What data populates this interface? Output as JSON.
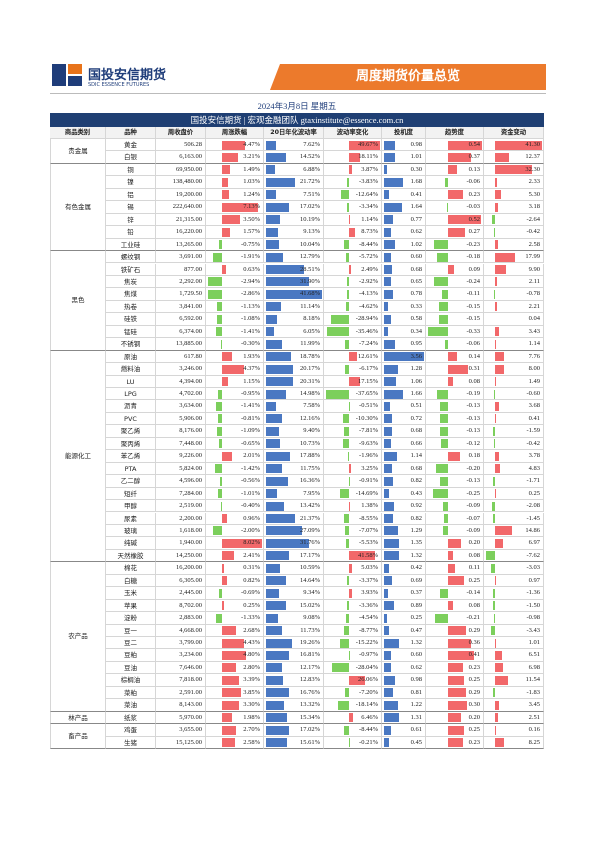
{
  "header": {
    "logo_text": "国投安信期货",
    "logo_sub": "SDIC ESSENCE FUTURES",
    "banner": "周度期货价量总览"
  },
  "date": "2024年3月8日 星期五",
  "table": {
    "title": "国投安信期货 | 宏观金融团队  gtaxinstitute@essence.com.cn",
    "columns": [
      "商品类别",
      "品种",
      "周收盘价",
      "周涨跌幅",
      "20日年化波动率",
      "波动率变化",
      "投机度",
      "趋势度",
      "资金变动"
    ],
    "groups": [
      {
        "category": "贵金属",
        "rows": [
          [
            "黄金",
            "506.28",
            "4.47%",
            "7.62%",
            "49.67%",
            "0.98",
            "0.54",
            "41.30"
          ],
          [
            "白银",
            "6,163.00",
            "3.21%",
            "14.52%",
            "18.11%",
            "1.01",
            "0.37",
            "12.37"
          ]
        ]
      },
      {
        "category": "有色金属",
        "rows": [
          [
            "铜",
            "69,950.00",
            "1.49%",
            "6.88%",
            "3.87%",
            "0.30",
            "0.13",
            "32.30"
          ],
          [
            "镍",
            "138,480.00",
            "1.03%",
            "21.72%",
            "-3.83%",
            "1.68",
            "-0.06",
            "2.33"
          ],
          [
            "铝",
            "19,200.00",
            "1.24%",
            "7.51%",
            "-12.64%",
            "0.41",
            "0.23",
            "5.30"
          ],
          [
            "锡",
            "222,640.00",
            "7.13%",
            "17.02%",
            "-3.34%",
            "1.64",
            "-0.03",
            "3.18"
          ],
          [
            "锌",
            "21,315.00",
            "3.50%",
            "10.19%",
            "1.14%",
            "0.77",
            "0.52",
            "-2.64"
          ],
          [
            "铅",
            "16,220.00",
            "1.57%",
            "9.13%",
            "8.73%",
            "0.62",
            "0.27",
            "-0.42"
          ],
          [
            "工业硅",
            "13,265.00",
            "-0.75%",
            "10.04%",
            "-8.44%",
            "1.02",
            "-0.23",
            "2.58"
          ]
        ]
      },
      {
        "category": "黑色",
        "rows": [
          [
            "螺纹钢",
            "3,691.00",
            "-1.91%",
            "12.79%",
            "-5.72%",
            "0.60",
            "-0.18",
            "17.99"
          ],
          [
            "铁矿石",
            "877.00",
            "0.63%",
            "28.51%",
            "2.49%",
            "0.68",
            "0.09",
            "9.90"
          ],
          [
            "焦炭",
            "2,292.00",
            "-2.94%",
            "31.90%",
            "-2.92%",
            "0.65",
            "-0.24",
            "2.11"
          ],
          [
            "焦煤",
            "1,729.50",
            "-2.86%",
            "41.68%",
            "-4.13%",
            "0.78",
            "-0.11",
            "-0.78"
          ],
          [
            "热卷",
            "3,841.00",
            "-1.13%",
            "11.14%",
            "-4.62%",
            "0.33",
            "-0.15",
            "2.21"
          ],
          [
            "硅铁",
            "6,592.00",
            "-1.08%",
            "8.18%",
            "-28.94%",
            "0.58",
            "-0.15",
            "0.04"
          ],
          [
            "锰硅",
            "6,374.00",
            "-1.41%",
            "6.05%",
            "-35.46%",
            "0.34",
            "-0.33",
            "3.43"
          ],
          [
            "不锈钢",
            "13,885.00",
            "-0.30%",
            "11.99%",
            "-7.24%",
            "0.95",
            "-0.06",
            "1.14"
          ]
        ]
      },
      {
        "category": "能源化工",
        "rows": [
          [
            "原油",
            "617.80",
            "1.93%",
            "18.78%",
            "12.61%",
            "3.56",
            "0.14",
            "7.76"
          ],
          [
            "燃料油",
            "3,246.00",
            "4.37%",
            "20.17%",
            "-6.17%",
            "1.28",
            "0.31",
            "8.00"
          ],
          [
            "LU",
            "4,394.00",
            "1.15%",
            "20.31%",
            "17.15%",
            "1.06",
            "0.08",
            "1.49"
          ],
          [
            "LPG",
            "4,702.00",
            "-0.95%",
            "14.98%",
            "-37.65%",
            "1.66",
            "-0.19",
            "-0.60"
          ],
          [
            "沥青",
            "3,634.00",
            "-1.41%",
            "7.58%",
            "-0.51%",
            "0.51",
            "-0.13",
            "3.68"
          ],
          [
            "PVC",
            "5,906.00",
            "-0.81%",
            "12.16%",
            "-10.30%",
            "0.72",
            "-0.13",
            "0.41"
          ],
          [
            "聚乙烯",
            "8,176.00",
            "-1.09%",
            "9.40%",
            "-7.81%",
            "0.68",
            "-0.13",
            "-1.59"
          ],
          [
            "聚丙烯",
            "7,448.00",
            "-0.65%",
            "10.73%",
            "-9.63%",
            "0.66",
            "-0.12",
            "-0.42"
          ],
          [
            "苯乙烯",
            "9,226.00",
            "2.01%",
            "17.88%",
            "-1.96%",
            "1.14",
            "0.18",
            "3.78"
          ],
          [
            "PTA",
            "5,824.00",
            "-1.42%",
            "11.75%",
            "3.25%",
            "0.68",
            "-0.20",
            "4.83"
          ],
          [
            "乙二醇",
            "4,596.00",
            "-0.56%",
            "16.36%",
            "-0.91%",
            "0.82",
            "-0.13",
            "-1.71"
          ],
          [
            "短纤",
            "7,284.00",
            "-1.01%",
            "7.95%",
            "-14.69%",
            "0.43",
            "-0.25",
            "0.25"
          ],
          [
            "甲醇",
            "2,519.00",
            "-0.40%",
            "13.42%",
            "1.38%",
            "0.92",
            "-0.09",
            "-2.08"
          ],
          [
            "尿素",
            "2,200.00",
            "0.96%",
            "21.37%",
            "-8.55%",
            "0.82",
            "-0.07",
            "-1.45"
          ],
          [
            "玻璃",
            "1,618.00",
            "-2.00%",
            "27.09%",
            "-7.07%",
            "1.29",
            "-0.09",
            "14.86"
          ],
          [
            "纯碱",
            "1,940.00",
            "8.02%",
            "31.76%",
            "-5.53%",
            "1.35",
            "0.20",
            "6.97"
          ],
          [
            "天然橡胶",
            "14,250.00",
            "2.41%",
            "17.17%",
            "41.58%",
            "1.32",
            "0.08",
            "-7.62"
          ]
        ]
      },
      {
        "category": "农产品",
        "rows": [
          [
            "棉花",
            "16,200.00",
            "0.31%",
            "10.59%",
            "5.03%",
            "0.42",
            "0.11",
            "-3.03"
          ],
          [
            "白糖",
            "6,305.00",
            "0.82%",
            "14.64%",
            "-3.37%",
            "0.69",
            "0.25",
            "0.97"
          ],
          [
            "玉米",
            "2,445.00",
            "-0.69%",
            "9.34%",
            "3.93%",
            "0.37",
            "-0.14",
            "-1.36"
          ],
          [
            "苹果",
            "8,702.00",
            "0.25%",
            "15.02%",
            "-3.36%",
            "0.89",
            "0.08",
            "-1.50"
          ],
          [
            "淀粉",
            "2,883.00",
            "-1.33%",
            "9.08%",
            "-4.54%",
            "0.25",
            "-0.21",
            "-0.98"
          ],
          [
            "豆一",
            "4,668.00",
            "2.68%",
            "11.73%",
            "-8.77%",
            "0.47",
            "0.29",
            "-3.43"
          ],
          [
            "豆二",
            "3,799.00",
            "4.43%",
            "19.26%",
            "-15.22%",
            "1.32",
            "0.36",
            "1.01"
          ],
          [
            "豆粕",
            "3,234.00",
            "4.80%",
            "16.81%",
            "-0.97%",
            "0.60",
            "0.41",
            "6.51"
          ],
          [
            "豆油",
            "7,646.00",
            "2.80%",
            "12.17%",
            "-28.04%",
            "0.62",
            "0.23",
            "6.98"
          ],
          [
            "棕榈油",
            "7,818.00",
            "3.39%",
            "12.83%",
            "26.06%",
            "0.98",
            "0.25",
            "11.54"
          ],
          [
            "菜粕",
            "2,591.00",
            "3.85%",
            "16.76%",
            "-7.20%",
            "0.81",
            "0.29",
            "-1.83"
          ],
          [
            "菜油",
            "8,143.00",
            "3.30%",
            "13.32%",
            "-18.14%",
            "1.22",
            "0.30",
            "3.45"
          ]
        ]
      },
      {
        "category": "林产品",
        "rows": [
          [
            "纸浆",
            "5,970.00",
            "1.98%",
            "15.34%",
            "6.46%",
            "1.31",
            "0.20",
            "2.51"
          ]
        ]
      },
      {
        "category": "畜产品",
        "rows": [
          [
            "鸡蛋",
            "3,655.00",
            "2.70%",
            "17.02%",
            "-8.44%",
            "0.61",
            "0.25",
            "0.16"
          ],
          [
            "生猪",
            "15,125.00",
            "2.58%",
            "15.61%",
            "-0.21%",
            "0.45",
            "0.23",
            "8.25"
          ]
        ]
      }
    ]
  }
}
